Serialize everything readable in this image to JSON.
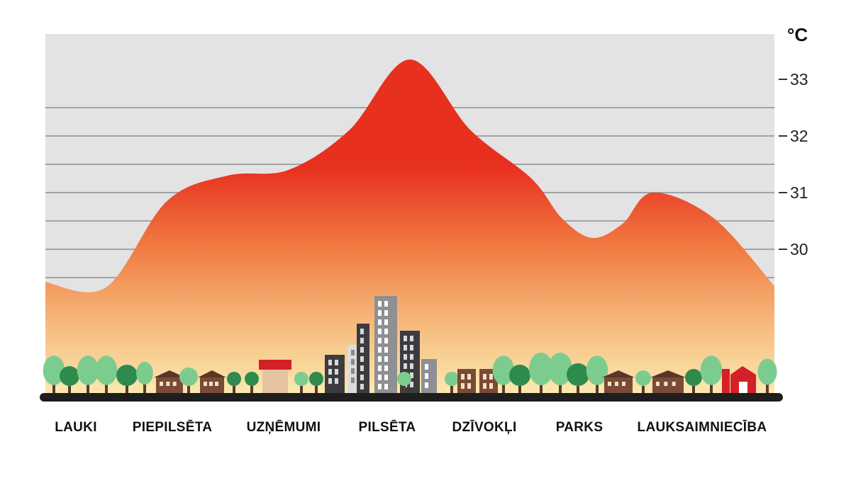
{
  "chart_data": {
    "type": "area",
    "unit": "°C",
    "categories": [
      "LAUKI",
      "PIEPILSĒTA",
      "UZŅĒMUMI",
      "PILSĒTA",
      "DZĪVOKĻI",
      "PARKS",
      "LAUKSAIMNIECĪBA"
    ],
    "yticks": [
      30,
      31,
      32,
      33
    ],
    "ylim": [
      27.6,
      33.8
    ],
    "grid": true,
    "series": [
      {
        "x": [
          0,
          0.5,
          1.0,
          1.5,
          2.0,
          2.5,
          3.0,
          3.5,
          4.0,
          4.25,
          4.5,
          4.75,
          5.0,
          5.5,
          6.0
        ],
        "values": [
          29.42,
          29.33,
          30.85,
          31.3,
          31.4,
          32.1,
          33.35,
          32.1,
          31.25,
          30.55,
          30.2,
          30.45,
          31.0,
          30.55,
          29.35
        ]
      }
    ],
    "colors": {
      "gradient_top": "#e8301f",
      "gradient_mid": "#f07840",
      "gradient_low": "#f6b87a",
      "gradient_bottom": "#fbeab0",
      "sky": "#e3e3e3",
      "grid": "#8a8e98",
      "ground": "#1e1e1e",
      "tree_dark": "#2e8b4e",
      "tree_light": "#7ccc8f",
      "house": "#7a4a36",
      "roof_red": "#d42027",
      "building_gray": "#8f8f94",
      "building_dark": "#3c3c40"
    }
  }
}
